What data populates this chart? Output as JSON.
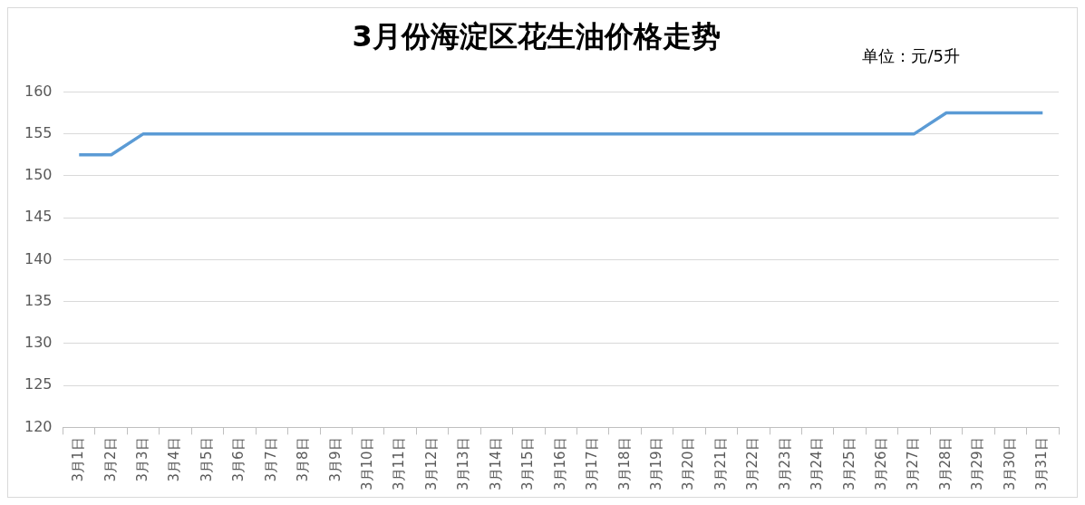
{
  "chart_data": {
    "type": "line",
    "title": "3月份海淀区花生油价格走势",
    "annotations": [
      "单位：元/5升"
    ],
    "categories": [
      "3月1日",
      "3月2日",
      "3月3日",
      "3月4日",
      "3月5日",
      "3月6日",
      "3月7日",
      "3月8日",
      "3月9日",
      "3月10日",
      "3月11日",
      "3月12日",
      "3月13日",
      "3月14日",
      "3月15日",
      "3月16日",
      "3月17日",
      "3月18日",
      "3月19日",
      "3月20日",
      "3月21日",
      "3月22日",
      "3月23日",
      "3月24日",
      "3月25日",
      "3月26日",
      "3月27日",
      "3月28日",
      "3月29日",
      "3月30日",
      "3月31日"
    ],
    "series": [
      {
        "color": "#5b9bd5",
        "values": [
          152.5,
          152.5,
          155,
          155,
          155,
          155,
          155,
          155,
          155,
          155,
          155,
          155,
          155,
          155,
          155,
          155,
          155,
          155,
          155,
          155,
          155,
          155,
          155,
          155,
          155,
          155,
          155,
          157.5,
          157.5,
          157.5,
          157.5
        ]
      }
    ],
    "ylim": [
      120,
      160
    ],
    "yticks": [
      120,
      125,
      130,
      135,
      140,
      145,
      150,
      155,
      160
    ],
    "grid": "y",
    "legend": false,
    "marker": "none",
    "line_style": "solid"
  }
}
